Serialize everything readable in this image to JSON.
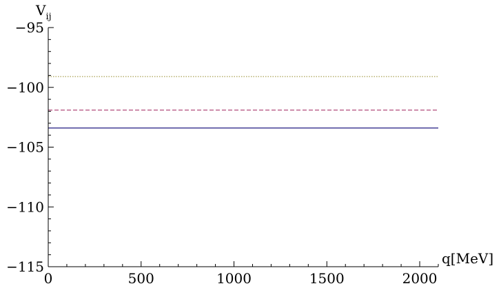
{
  "chart_data": {
    "type": "line",
    "title": "",
    "xlabel": "q[MeV]",
    "ylabel": "V",
    "ylabel_subscript": "ij",
    "xlim": [
      0,
      2100
    ],
    "ylim": [
      -115,
      -95
    ],
    "x_major_ticks": [
      0,
      500,
      1000,
      1500,
      2000
    ],
    "x_tick_labels": [
      "0",
      "500",
      "1000",
      "1500",
      "2000"
    ],
    "y_major_ticks": [
      -115,
      -110,
      -105,
      -100,
      -95
    ],
    "y_tick_labels": [
      "−115",
      "−110",
      "−105",
      "−100",
      "−95"
    ],
    "grid": false,
    "legend": "none",
    "series": [
      {
        "x": [
          0,
          2100
        ],
        "values": [
          -103.4,
          -103.4
        ],
        "color": "#1f1a80",
        "style": "solid"
      },
      {
        "x": [
          0,
          2100
        ],
        "values": [
          -101.9,
          -101.9
        ],
        "color": "#b04a7a",
        "style": "dashed"
      },
      {
        "x": [
          0,
          2100
        ],
        "values": [
          -99.1,
          -99.1
        ],
        "color": "#a8a050",
        "style": "dotted"
      }
    ]
  }
}
